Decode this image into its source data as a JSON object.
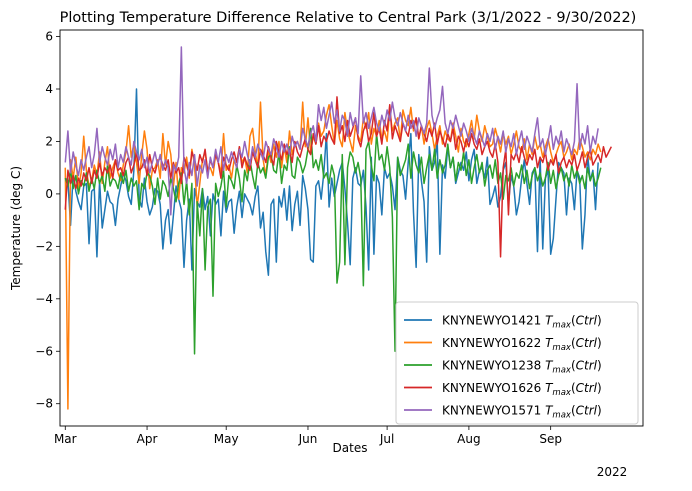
{
  "chart_data": {
    "type": "line",
    "title": "Plotting Temperature Difference Relative to Central Park (3/1/2022 - 9/30/2022)",
    "xlabel": "Dates",
    "ylabel": "Temperature (deg C)",
    "year_label": "2022",
    "x_start": "2022-03-01",
    "x_end": "2022-09-30",
    "xlim": [
      "2022-02-27",
      "2022-10-06"
    ],
    "ylim": [
      -8.85,
      6.25
    ],
    "x_ticks": [
      {
        "label": "Mar",
        "date": "2022-03-01"
      },
      {
        "label": "Apr",
        "date": "2022-04-01"
      },
      {
        "label": "May",
        "date": "2022-05-01"
      },
      {
        "label": "Jun",
        "date": "2022-06-01"
      },
      {
        "label": "Jul",
        "date": "2022-07-01"
      },
      {
        "label": "Aug",
        "date": "2022-08-01"
      },
      {
        "label": "Sep",
        "date": "2022-09-01"
      }
    ],
    "y_ticks": [
      6,
      4,
      2,
      0,
      -2,
      -4,
      -6,
      -8
    ],
    "legend_position": "lower right",
    "series": [
      {
        "name": "KNYNEWYO1421",
        "color": "#1f77b4",
        "values": [
          0.6,
          0.5,
          -1.2,
          0.8,
          0.1,
          -0.3,
          -0.6,
          0.3,
          0.4,
          -1.9,
          0.1,
          0.2,
          -2.4,
          0.5,
          -1.3,
          -0.6,
          0.1,
          -0.3,
          -0.4,
          -1.2,
          -0.2,
          0.3,
          0.8,
          0.5,
          -0.1,
          -0.4,
          0.9,
          4.0,
          -0.2,
          -0.5,
          0.6,
          -0.3,
          -0.8,
          -0.5,
          0.2,
          0.1,
          -0.4,
          -2.1,
          -1.0,
          -0.6,
          -1.9,
          -0.8,
          0.3,
          -0.2,
          -0.6,
          -2.8,
          -1.0,
          -0.2,
          -2.9,
          0.2,
          -0.3,
          -0.5,
          0.2,
          -0.6,
          -0.1,
          -1.6,
          0.0,
          -0.4,
          -0.2,
          -1.6,
          0.1,
          -0.7,
          -0.3,
          -0.2,
          -1.5,
          -0.5,
          0.1,
          -0.9,
          0.0,
          -0.2,
          -0.4,
          -0.8,
          -0.1,
          0.3,
          -1.3,
          -0.7,
          -2.2,
          -3.1,
          -0.4,
          -0.2,
          -2.6,
          -0.1,
          -0.5,
          0.2,
          -1.0,
          0.3,
          -1.4,
          -0.4,
          0.1,
          -1.2,
          0.7,
          0.2,
          -0.6,
          -2.5,
          -2.6,
          0.3,
          0.5,
          -0.2,
          0.8,
          2.3,
          -0.5,
          0.6,
          -0.1,
          0.4,
          0.9,
          1.2,
          0.2,
          -1.1,
          -2.7,
          0.6,
          1.0,
          0.4,
          0.3,
          0.9,
          -0.5,
          -2.9,
          1.4,
          -2.3,
          0.7,
          0.4,
          -0.8,
          1.0,
          0.6,
          0.8,
          0.3,
          -0.6,
          1.4,
          0.9,
          0.7,
          -0.2,
          1.2,
          2.3,
          -0.7,
          -2.8,
          1.5,
          0.5,
          -0.3,
          -2.6,
          1.8,
          0.9,
          1.2,
          2.0,
          -2.3,
          1.1,
          0.6,
          1.8,
          1.0,
          1.4,
          0.4,
          0.8,
          1.2,
          0.9,
          1.6,
          0.5,
          1.3,
          1.7,
          0.4,
          0.9,
          1.0,
          0.6,
          1.4,
          -0.4,
          -0.1,
          0.3,
          -0.5,
          -0.1,
          0.9,
          1.2,
          -0.4,
          0.7,
          0.3,
          -0.8,
          -0.3,
          0.6,
          1.3,
          0.4,
          -0.4,
          0.8,
          1.0,
          -2.2,
          1.4,
          -2.1,
          0.6,
          0.9,
          -2.3,
          -1.7,
          -0.2,
          1.2,
          1.0,
          0.8,
          -0.8,
          0.6,
          0.4,
          -0.6,
          0.9,
          0.6,
          -2.1,
          -0.8,
          1.5,
          0.5,
          0.9,
          -0.6,
          1.2
        ]
      },
      {
        "name": "KNYNEWYO1622",
        "color": "#ff7f0e",
        "values": [
          1.0,
          -8.2,
          1.3,
          0.6,
          1.4,
          0.2,
          0.8,
          2.2,
          0.9,
          0.3,
          0.5,
          1.1,
          0.7,
          1.6,
          0.4,
          1.2,
          1.8,
          0.6,
          1.0,
          1.3,
          0.8,
          0.5,
          1.1,
          1.6,
          2.6,
          1.4,
          1.9,
          1.2,
          0.4,
          1.5,
          2.4,
          1.7,
          0.2,
          0.9,
          1.0,
          1.3,
          0.6,
          2.3,
          1.1,
          2.0,
          1.5,
          0.3,
          1.2,
          -0.2,
          1.0,
          0.8,
          1.4,
          0.6,
          1.7,
          1.1,
          -0.5,
          0.4,
          1.3,
          1.6,
          0.9,
          1.0,
          0.7,
          1.5,
          1.2,
          0.8,
          2.3,
          0.9,
          1.1,
          0.6,
          1.3,
          1.0,
          1.8,
          1.2,
          1.4,
          0.8,
          2.2,
          2.5,
          1.6,
          1.0,
          3.5,
          1.3,
          0.7,
          1.6,
          1.2,
          1.9,
          1.4,
          2.0,
          1.0,
          1.8,
          1.2,
          2.4,
          1.5,
          1.9,
          2.0,
          1.7,
          3.5,
          1.8,
          2.9,
          1.6,
          2.2,
          1.9,
          2.7,
          2.2,
          2.4,
          3.0,
          3.4,
          2.6,
          1.9,
          2.8,
          2.1,
          1.8,
          3.1,
          2.4,
          2.0,
          1.6,
          2.6,
          2.2,
          2.0,
          2.9,
          2.5,
          3.1,
          1.9,
          2.5,
          2.2,
          2.8,
          2.1,
          2.4,
          2.0,
          3.2,
          2.4,
          2.7,
          2.9,
          2.0,
          3.2,
          2.8,
          2.6,
          3.3,
          2.4,
          2.9,
          2.1,
          2.6,
          1.9,
          2.5,
          2.8,
          2.3,
          1.7,
          2.2,
          2.6,
          1.9,
          2.4,
          2.1,
          2.0,
          2.7,
          2.2,
          1.6,
          2.5,
          2.0,
          1.8,
          2.3,
          2.8,
          2.1,
          3.0,
          2.4,
          2.0,
          2.6,
          2.2,
          1.8,
          1.9,
          2.5,
          2.1,
          1.6,
          2.3,
          1.9,
          2.2,
          1.5,
          1.9,
          2.4,
          1.8,
          1.6,
          2.1,
          1.3,
          1.9,
          1.5,
          2.2,
          1.7,
          1.9,
          1.4,
          1.8,
          2.1,
          1.6,
          1.2,
          1.5,
          1.8,
          2.0,
          1.4,
          1.6,
          1.9,
          1.3,
          1.7,
          1.5,
          2.1,
          1.8,
          1.4,
          1.6,
          1.3,
          1.7,
          1.5,
          1.9,
          1.6
        ]
      },
      {
        "name": "KNYNEWYO1238",
        "color": "#2ca02c",
        "values": [
          0.6,
          0.3,
          0.9,
          0.2,
          0.7,
          0.0,
          0.5,
          0.3,
          0.8,
          0.1,
          0.6,
          0.2,
          0.9,
          0.4,
          0.7,
          0.1,
          1.1,
          0.3,
          0.6,
          0.5,
          0.2,
          0.8,
          0.4,
          0.9,
          0.1,
          0.6,
          0.3,
          0.5,
          -0.6,
          0.4,
          0.2,
          0.8,
          0.7,
          0.3,
          -0.4,
          0.6,
          -0.2,
          0.5,
          0.3,
          -0.1,
          0.6,
          0.2,
          -0.3,
          0.4,
          0.8,
          -0.4,
          0.5,
          -0.8,
          0.4,
          -6.1,
          -0.3,
          -1.6,
          0.2,
          -2.9,
          -0.5,
          -0.2,
          -3.9,
          0.4,
          -0.1,
          0.3,
          0.9,
          -0.5,
          0.7,
          0.5,
          0.2,
          1.1,
          0.6,
          -0.3,
          0.9,
          0.5,
          1.3,
          0.7,
          0.2,
          1.2,
          0.8,
          1.0,
          0.6,
          1.4,
          1.5,
          0.9,
          0.8,
          1.6,
          0.4,
          1.1,
          0.9,
          1.8,
          0.7,
          0.6,
          1.4,
          1.2,
          0.8,
          1.1,
          1.7,
          2.5,
          1.0,
          1.3,
          0.9,
          1.5,
          0.6,
          0.8,
          0.4,
          1.1,
          0.7,
          -3.4,
          -2.6,
          1.5,
          -2.7,
          1.0,
          1.6,
          1.4,
          0.8,
          1.2,
          0.6,
          -3.5,
          1.7,
          2.0,
          1.1,
          0.5,
          2.3,
          1.3,
          1.5,
          0.9,
          1.8,
          1.0,
          -0.9,
          -6.0,
          1.4,
          0.7,
          1.0,
          1.3,
          1.9,
          0.6,
          1.6,
          1.1,
          0.8,
          1.4,
          0.4,
          1.0,
          1.5,
          0.9,
          1.7,
          0.6,
          1.3,
          0.8,
          1.1,
          1.9,
          1.0,
          1.4,
          0.5,
          1.2,
          0.9,
          1.6,
          0.7,
          1.3,
          0.4,
          1.0,
          1.5,
          0.8,
          1.2,
          0.3,
          0.9,
          1.1,
          0.6,
          1.3,
          0.4,
          0.8,
          -0.2,
          0.7,
          0.5,
          1.0,
          0.3,
          0.8,
          0.6,
          1.1,
          0.4,
          0.9,
          0.2,
          0.7,
          1.0,
          0.5,
          0.8,
          0.3,
          0.6,
          1.2,
          0.4,
          0.9,
          0.2,
          0.7,
          1.0,
          0.5,
          0.8,
          0.3,
          1.1,
          0.6,
          0.9,
          0.4,
          0.7,
          0.2,
          1.0,
          0.5,
          0.8,
          0.3,
          0.6,
          1.0
        ]
      },
      {
        "name": "KNYNEWYO1626",
        "color": "#d62728",
        "values": [
          -0.6,
          0.9,
          0.4,
          0.7,
          0.2,
          0.6,
          0.3,
          0.8,
          0.5,
          1.0,
          0.4,
          0.9,
          0.6,
          1.2,
          0.7,
          1.0,
          0.8,
          1.1,
          0.6,
          1.3,
          0.9,
          1.0,
          0.7,
          1.2,
          1.4,
          0.8,
          1.1,
          1.6,
          0.9,
          1.0,
          1.3,
          0.7,
          1.5,
          1.0,
          0.8,
          1.2,
          1.4,
          1.1,
          0.9,
          1.3,
          0.6,
          1.2,
          0.8,
          1.0,
          0.4,
          1.4,
          1.1,
          0.7,
          1.6,
          1.3,
          0.9,
          1.5,
          1.2,
          1.7,
          0.8,
          1.3,
          1.0,
          1.5,
          1.2,
          0.6,
          1.4,
          1.1,
          0.9,
          1.3,
          1.6,
          1.2,
          1.8,
          1.0,
          1.4,
          1.1,
          0.9,
          1.6,
          1.3,
          1.0,
          1.7,
          1.5,
          1.2,
          1.8,
          1.4,
          1.1,
          2.0,
          1.6,
          1.3,
          1.9,
          1.5,
          1.7,
          1.2,
          2.0,
          1.6,
          1.4,
          1.8,
          2.1,
          1.7,
          1.5,
          2.3,
          1.9,
          2.6,
          1.8,
          2.2,
          2.0,
          2.4,
          2.1,
          1.9,
          3.7,
          2.3,
          2.6,
          2.0,
          2.8,
          2.2,
          2.5,
          2.9,
          2.1,
          1.8,
          2.4,
          2.7,
          2.0,
          2.3,
          3.1,
          2.2,
          2.5,
          1.9,
          2.8,
          2.4,
          3.4,
          2.1,
          2.6,
          2.3,
          2.0,
          2.7,
          2.4,
          2.2,
          2.8,
          2.5,
          2.9,
          2.1,
          2.6,
          2.3,
          2.0,
          2.5,
          2.2,
          2.7,
          1.9,
          2.4,
          2.1,
          1.8,
          2.3,
          2.0,
          2.5,
          1.7,
          2.2,
          2.0,
          1.6,
          2.1,
          1.8,
          2.3,
          1.9,
          1.7,
          2.1,
          1.5,
          1.8,
          2.0,
          1.6,
          1.4,
          1.9,
          1.2,
          -2.4,
          1.0,
          1.7,
          -0.8,
          1.5,
          1.3,
          1.6,
          1.2,
          1.8,
          1.4,
          1.1,
          1.5,
          1.3,
          1.7,
          1.0,
          1.4,
          1.2,
          1.6,
          0.9,
          1.3,
          1.1,
          1.5,
          0.8,
          1.2,
          1.4,
          1.0,
          1.3,
          1.1,
          1.5,
          0.9,
          1.2,
          1.6,
          1.0,
          1.4,
          1.7,
          1.1,
          1.3,
          1.5,
          1.2,
          1.8,
          1.4,
          1.6,
          1.8
        ]
      },
      {
        "name": "KNYNEWYO1571",
        "color": "#9467bd",
        "values": [
          1.2,
          2.4,
          0.8,
          1.6,
          1.1,
          0.7,
          1.3,
          0.9,
          1.4,
          1.8,
          1.0,
          1.5,
          2.5,
          1.2,
          1.8,
          1.4,
          1.1,
          1.7,
          1.3,
          1.9,
          1.0,
          1.5,
          1.2,
          1.8,
          1.4,
          1.1,
          2.0,
          1.6,
          1.3,
          1.7,
          1.0,
          1.4,
          0.8,
          1.2,
          1.6,
          1.1,
          1.5,
          0.9,
          1.3,
          1.0,
          -0.8,
          1.1,
          0.9,
          1.4,
          5.6,
          1.0,
          0.4,
          1.2,
          0.7,
          1.5,
          0.3,
          1.1,
          0.8,
          1.3,
          0.6,
          1.4,
          1.0,
          1.7,
          1.2,
          1.8,
          0.9,
          1.5,
          1.2,
          1.6,
          1.3,
          1.0,
          1.7,
          1.4,
          2.0,
          1.5,
          1.1,
          1.8,
          1.4,
          1.9,
          1.6,
          1.3,
          2.0,
          1.7,
          1.5,
          2.1,
          1.8,
          1.4,
          2.0,
          1.6,
          1.9,
          1.5,
          2.2,
          1.8,
          2.0,
          1.7,
          2.5,
          2.1,
          1.8,
          2.3,
          2.6,
          2.0,
          3.4,
          2.8,
          3.3,
          2.5,
          3.0,
          3.5,
          2.7,
          3.2,
          2.4,
          3.0,
          2.8,
          2.2,
          3.1,
          2.6,
          2.9,
          2.3,
          4.5,
          2.7,
          3.1,
          2.5,
          2.9,
          3.3,
          2.7,
          2.4,
          3.0,
          2.6,
          3.2,
          2.8,
          3.5,
          2.9,
          2.6,
          3.1,
          2.7,
          2.4,
          3.0,
          2.5,
          2.8,
          2.2,
          2.9,
          2.6,
          2.3,
          2.7,
          4.8,
          3.0,
          2.5,
          2.9,
          3.2,
          4.1,
          2.7,
          2.3,
          2.8,
          2.5,
          3.0,
          2.6,
          2.2,
          2.7,
          2.4,
          2.0,
          2.5,
          2.2,
          1.9,
          2.4,
          2.1,
          1.8,
          2.3,
          2.0,
          2.5,
          1.7,
          2.2,
          1.9,
          2.4,
          1.6,
          2.1,
          1.8,
          2.3,
          1.5,
          2.0,
          2.4,
          1.7,
          2.2,
          1.9,
          1.6,
          2.3,
          2.9,
          1.8,
          2.1,
          1.5,
          2.0,
          2.6,
          1.7,
          2.2,
          1.9,
          2.4,
          1.6,
          2.1,
          1.8,
          1.5,
          2.0,
          4.2,
          1.7,
          2.3,
          1.9,
          2.6,
          1.6,
          2.2,
          1.9,
          2.5
        ]
      }
    ]
  }
}
